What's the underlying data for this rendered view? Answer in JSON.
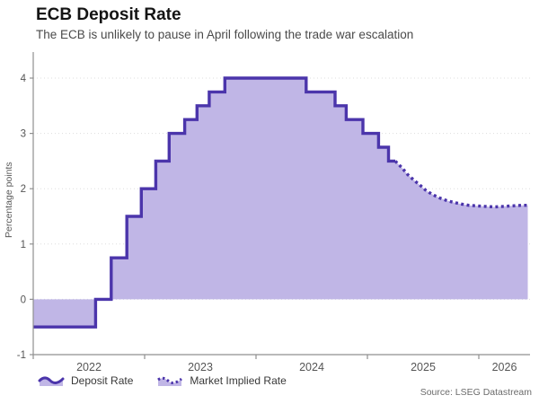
{
  "header": {
    "title": "ECB Deposit Rate",
    "subtitle": "The ECB is unlikely to pause in April following the trade war escalation"
  },
  "source": "Source: LSEG Datastream",
  "colors": {
    "line": "#4b35ab",
    "fill": "#c0b6e6",
    "axis": "#8f8f8f",
    "grid": "#dddddd",
    "tick_text": "#555555"
  },
  "chart_data": {
    "type": "area",
    "title": "ECB Deposit Rate",
    "subtitle": "The ECB is unlikely to pause in April following the trade war escalation",
    "xlabel": "",
    "ylabel": "Percentage points",
    "ylim": [
      -1,
      4.47
    ],
    "yticks": [
      -1,
      0,
      1,
      2,
      3,
      4
    ],
    "xlim": [
      2022.0,
      2026.46
    ],
    "xticks": [
      2022,
      2023,
      2024,
      2025,
      2026
    ],
    "xtick_label_position": "between-ticks",
    "grid": "horizontal-dotted",
    "legend_position": "bottom-left",
    "baseline": 0,
    "series": [
      {
        "name": "Deposit Rate",
        "style": "solid",
        "points": [
          [
            2022.0,
            -0.5
          ],
          [
            2022.56,
            -0.5
          ],
          [
            2022.56,
            0.0
          ],
          [
            2022.7,
            0.0
          ],
          [
            2022.7,
            0.75
          ],
          [
            2022.84,
            0.75
          ],
          [
            2022.84,
            1.5
          ],
          [
            2022.97,
            1.5
          ],
          [
            2022.97,
            2.0
          ],
          [
            2023.1,
            2.0
          ],
          [
            2023.1,
            2.5
          ],
          [
            2023.22,
            2.5
          ],
          [
            2023.22,
            3.0
          ],
          [
            2023.36,
            3.0
          ],
          [
            2023.36,
            3.25
          ],
          [
            2023.47,
            3.25
          ],
          [
            2023.47,
            3.5
          ],
          [
            2023.58,
            3.5
          ],
          [
            2023.58,
            3.75
          ],
          [
            2023.72,
            3.75
          ],
          [
            2023.72,
            4.0
          ],
          [
            2024.45,
            4.0
          ],
          [
            2024.45,
            3.75
          ],
          [
            2024.71,
            3.75
          ],
          [
            2024.71,
            3.5
          ],
          [
            2024.81,
            3.5
          ],
          [
            2024.81,
            3.25
          ],
          [
            2024.96,
            3.25
          ],
          [
            2024.96,
            3.0
          ],
          [
            2025.1,
            3.0
          ],
          [
            2025.1,
            2.75
          ],
          [
            2025.19,
            2.75
          ],
          [
            2025.19,
            2.5
          ],
          [
            2025.25,
            2.5
          ]
        ]
      },
      {
        "name": "Market Implied Rate",
        "style": "dotted",
        "points": [
          [
            2025.25,
            2.5
          ],
          [
            2025.31,
            2.38
          ],
          [
            2025.36,
            2.26
          ],
          [
            2025.42,
            2.15
          ],
          [
            2025.48,
            2.05
          ],
          [
            2025.53,
            1.96
          ],
          [
            2025.59,
            1.89
          ],
          [
            2025.65,
            1.83
          ],
          [
            2025.72,
            1.78
          ],
          [
            2025.78,
            1.75
          ],
          [
            2025.85,
            1.72
          ],
          [
            2025.91,
            1.7
          ],
          [
            2025.98,
            1.69
          ],
          [
            2026.06,
            1.68
          ],
          [
            2026.14,
            1.67
          ],
          [
            2026.22,
            1.68
          ],
          [
            2026.3,
            1.69
          ],
          [
            2026.38,
            1.7
          ],
          [
            2026.44,
            1.7
          ]
        ]
      }
    ]
  }
}
